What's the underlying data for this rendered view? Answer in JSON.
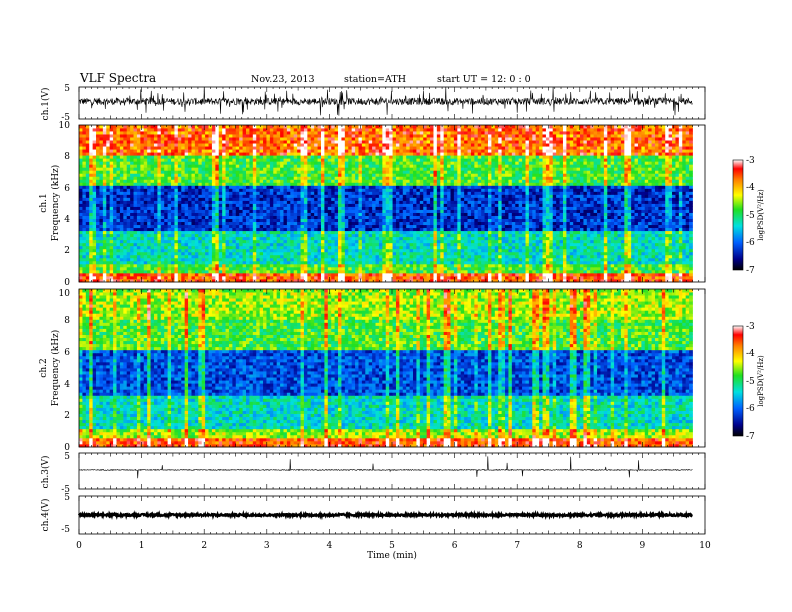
{
  "header": {
    "title": "VLF  Spectra",
    "date": "Nov.23, 2013",
    "station": "station=ATH",
    "start": "start  UT  =    12: 0  : 0"
  },
  "chart_data": [
    {
      "name": "ch1-waveform",
      "type": "line",
      "ylabel": "ch.1(V)",
      "ylim": [
        -5,
        5
      ],
      "yticks": [
        "5",
        "-5"
      ],
      "xlim": [
        0,
        10
      ],
      "trace_level": 0.5,
      "trace_end_min": 9.8,
      "trace_color": "#000000"
    },
    {
      "name": "ch1-spectrogram",
      "type": "heatmap",
      "ylabel": "ch.1\nFrequency  (kHz)",
      "ylabel_lines": [
        "ch.1",
        "Frequency  (kHz)"
      ],
      "ylim": [
        0,
        10
      ],
      "yticks": [
        "0",
        "2",
        "4",
        "6",
        "8",
        "10"
      ],
      "xlim": [
        0,
        10
      ],
      "data_end_min": 9.8,
      "colorbar": {
        "label": "logPSD(V²/Hz)",
        "range": [
          -7,
          -3
        ],
        "ticks": [
          "-3",
          "-4",
          "-5",
          "-6",
          "-7"
        ]
      }
    },
    {
      "name": "ch2-spectrogram",
      "type": "heatmap",
      "ylabel": "ch.2\nFrequency  (kHz)",
      "ylabel_lines": [
        "ch.2",
        "Frequency  (kHz)"
      ],
      "ylim": [
        0,
        10
      ],
      "yticks": [
        "0",
        "2",
        "4",
        "6",
        "8",
        "10"
      ],
      "xlim": [
        0,
        10
      ],
      "data_end_min": 9.8,
      "colorbar": {
        "label": "logPSD(V²/Hz)",
        "range": [
          -7,
          -3
        ],
        "ticks": [
          "-3",
          "-4",
          "-5",
          "-6",
          "-7"
        ]
      }
    },
    {
      "name": "ch3-waveform",
      "type": "line",
      "ylabel": "ch.3(V)",
      "ylim": [
        -5,
        5
      ],
      "yticks": [
        "5",
        "-5"
      ],
      "xlim": [
        0,
        10
      ],
      "trace_level": 0.3,
      "trace_end_min": 9.8,
      "trace_color": "#000000"
    },
    {
      "name": "ch4-waveform",
      "type": "line",
      "ylabel": "ch.4(V)",
      "ylim": [
        -5,
        5
      ],
      "yticks": [
        "5",
        "-5"
      ],
      "xlim": [
        0,
        10
      ],
      "trace_level": 0,
      "trace_end_min": 9.8,
      "trace_color": "#000000"
    }
  ],
  "xaxis": {
    "label": "Time  (min)",
    "range": [
      0,
      10
    ],
    "ticks": [
      "0",
      "1",
      "2",
      "3",
      "4",
      "5",
      "6",
      "7",
      "8",
      "9",
      "10"
    ]
  }
}
